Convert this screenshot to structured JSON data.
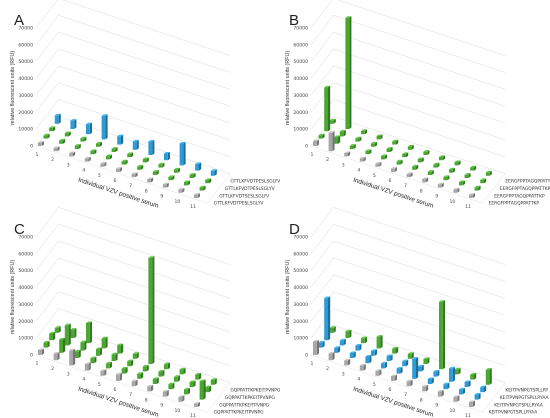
{
  "chart_data": [
    {
      "panel": "A",
      "type": "bar",
      "ylabel": "relative fluorescent units (RFU)",
      "xlabel": "Individual VZV positive serum",
      "ylim": [
        0,
        70000
      ],
      "yticks": [
        "0",
        "10000",
        "20000",
        "30000",
        "40000",
        "50000",
        "60000",
        "70000"
      ],
      "categories": [
        "1",
        "2",
        "3",
        "4",
        "5",
        "6",
        "7",
        "8",
        "9",
        "10",
        "11"
      ],
      "series": [
        {
          "name": "GTTLKFVDTPESLSGLYV",
          "color": "#a7a7a7",
          "values": [
            2000,
            2000,
            2000,
            2000,
            2000,
            2000,
            2000,
            2000,
            2000,
            2000,
            2000
          ]
        },
        {
          "name": "GTTLKFVDTSESLSGLYV",
          "color": "#4aa832",
          "values": [
            2000,
            2000,
            2000,
            2000,
            2000,
            2000,
            2000,
            2000,
            2000,
            2000,
            2000
          ]
        },
        {
          "name": "GTTLKFVDTPESLSGLYV",
          "color": "#4aa832",
          "values": [
            2000,
            2000,
            2000,
            2000,
            2000,
            2000,
            2000,
            2000,
            2000,
            2000,
            2000
          ]
        },
        {
          "name": "GTTLKFVDTPESLSGLYV",
          "color": "#2e9bd6",
          "values": [
            5000,
            5000,
            6000,
            14000,
            5000,
            5000,
            8000,
            4000,
            13000,
            4000,
            3000
          ]
        }
      ]
    },
    {
      "panel": "B",
      "type": "bar",
      "ylabel": "relative fluorescent units (RFU)",
      "xlabel": "Individual VZV positive serum",
      "ylim": [
        0,
        70000
      ],
      "yticks": [
        "0",
        "10000",
        "20000",
        "30000",
        "40000",
        "50000",
        "60000",
        "70000"
      ],
      "categories": [
        "1",
        "2",
        "3",
        "4",
        "5",
        "6",
        "7",
        "8",
        "9",
        "10",
        "11"
      ],
      "series": [
        {
          "name": "EERGFPPTAGQPPATTKP",
          "color": "#a7a7a7",
          "values": [
            3000,
            11000,
            2000,
            2000,
            2000,
            2000,
            2000,
            2000,
            2000,
            2000,
            2000
          ]
        },
        {
          "name": "EERGFPPTAGQPPATTKP",
          "color": "#4aa832",
          "values": [
            2000,
            4000,
            2000,
            2000,
            2000,
            2000,
            2000,
            2000,
            2000,
            2000,
            2000
          ]
        },
        {
          "name": "EERGFPPTAGQPPATTKP",
          "color": "#4aa832",
          "values": [
            26000,
            3000,
            2000,
            2000,
            2000,
            2000,
            2000,
            2000,
            2000,
            2000,
            2000
          ]
        },
        {
          "name": "EERGFPPTAGQPPATTKP",
          "color": "#4aa832",
          "values": [
            2000,
            66000,
            2000,
            2000,
            2000,
            2000,
            2000,
            2000,
            2000,
            2000,
            2000
          ]
        }
      ]
    },
    {
      "panel": "C",
      "type": "bar",
      "ylabel": "relative fluorescent units (RFU)",
      "xlabel": "Individual VZV positive serum",
      "ylim": [
        0,
        70000
      ],
      "yticks": [
        "0",
        "10000",
        "20000",
        "30000",
        "40000",
        "50000",
        "60000",
        "70000"
      ],
      "categories": [
        "1",
        "2",
        "3",
        "4",
        "5",
        "6",
        "7",
        "8",
        "9",
        "10",
        "11"
      ],
      "series": [
        {
          "name": "GQPPATTKPKEITPVNPG",
          "color": "#a7a7a7",
          "values": [
            3000,
            4000,
            9000,
            4000,
            3000,
            4000,
            3000,
            3000,
            3000,
            3000,
            2000
          ]
        },
        {
          "name": "GQPPATTKPKEITPVNPG",
          "color": "#4aa832",
          "values": [
            3000,
            8000,
            4000,
            3000,
            3000,
            3000,
            3000,
            3000,
            3000,
            3000,
            11000
          ]
        },
        {
          "name": "GQPPATTKPKEITPVNPG",
          "color": "#4aa832",
          "values": [
            4000,
            12000,
            5000,
            4000,
            4000,
            3000,
            3000,
            3000,
            3000,
            3000,
            3000
          ]
        },
        {
          "name": "GQPPATTKPKEITPVNPG",
          "color": "#4aa832",
          "values": [
            3000,
            5000,
            12000,
            6000,
            5000,
            3000,
            63000,
            3000,
            3000,
            3000,
            3000
          ]
        }
      ]
    },
    {
      "panel": "D",
      "type": "bar",
      "ylabel": "relative fluorescent units (RFU)",
      "xlabel": "Individual VZV positive serum",
      "ylim": [
        0,
        70000
      ],
      "yticks": [
        "0",
        "10000",
        "20000",
        "30000",
        "40000",
        "50000",
        "60000",
        "70000"
      ],
      "categories": [
        "1",
        "2",
        "3",
        "4",
        "5",
        "6",
        "7",
        "8",
        "9",
        "10",
        "11"
      ],
      "series": [
        {
          "name": "KEITPVNPGTSPLLRYAA",
          "color": "#a7a7a7",
          "values": [
            8000,
            4000,
            3000,
            3000,
            3000,
            3000,
            3000,
            3000,
            3000,
            3000,
            3000
          ]
        },
        {
          "name": "KEITPVNPGTSPLLRYAA",
          "color": "#2e9bd6",
          "values": [
            3000,
            3000,
            3000,
            4000,
            3000,
            3000,
            12000,
            3000,
            3000,
            3000,
            3000
          ]
        },
        {
          "name": "KEITPVNPGTSPLLRYAA",
          "color": "#2e9bd6",
          "values": [
            25000,
            3000,
            3000,
            3000,
            3000,
            3000,
            3000,
            3000,
            8000,
            3000,
            3000
          ]
        },
        {
          "name": "KEITPVNPGTSPLLRY",
          "color": "#4aa832",
          "values": [
            3000,
            4000,
            3000,
            7000,
            3000,
            3000,
            3000,
            40000,
            3000,
            3000,
            9000
          ]
        }
      ]
    }
  ]
}
